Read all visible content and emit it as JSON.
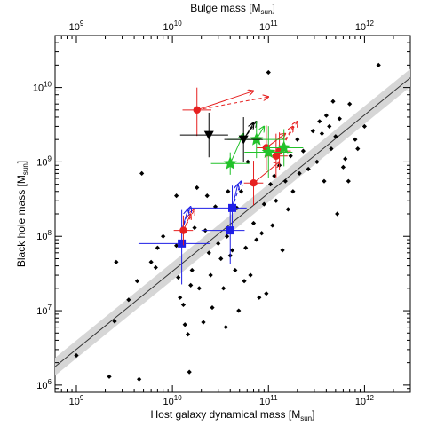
{
  "chart_data": {
    "type": "scatter",
    "title": "",
    "xlabel": "Host galaxy dynamical mass [M",
    "xlabel_sub": "sun",
    "xlabel_end": "]",
    "ylabel": "Black hole mass [M",
    "ylabel_sub": "sun",
    "ylabel_end": "]",
    "top_xlabel": "Bulge mass [M",
    "top_xlabel_sub": "sun",
    "top_xlabel_end": "]",
    "x_scale": "log",
    "y_scale": "log",
    "xlim": [
      600000000.0,
      3000000000000.0
    ],
    "ylim": [
      800000.0,
      50000000000.0
    ],
    "x_ticks": [
      {
        "base": "10",
        "exp": "9",
        "value": 1000000000.0
      },
      {
        "base": "10",
        "exp": "10",
        "value": 10000000000.0
      },
      {
        "base": "10",
        "exp": "11",
        "value": 100000000000.0
      },
      {
        "base": "10",
        "exp": "12",
        "value": 1000000000000.0
      }
    ],
    "y_ticks": [
      {
        "base": "10",
        "exp": "6",
        "value": 1000000.0
      },
      {
        "base": "10",
        "exp": "7",
        "value": 10000000.0
      },
      {
        "base": "10",
        "exp": "8",
        "value": 100000000.0
      },
      {
        "base": "10",
        "exp": "9",
        "value": 1000000000.0
      },
      {
        "base": "10",
        "exp": "10",
        "value": 10000000000.0
      }
    ],
    "top_x_ticks": [
      {
        "base": "10",
        "exp": "9",
        "value": 1000000000.0
      },
      {
        "base": "10",
        "exp": "10",
        "value": 10000000000.0
      },
      {
        "base": "10",
        "exp": "11",
        "value": 100000000000.0
      },
      {
        "base": "10",
        "exp": "12",
        "value": 1000000000000.0
      }
    ],
    "grid": false,
    "relation": {
      "x_range": [
        600000000.0,
        3000000000000.0
      ],
      "slope": 1.05,
      "intercept_logy_at_logx_11": 8.58,
      "band_dex": 0.12
    },
    "colors": {
      "local": "#000000",
      "blue": "#1f1fe6",
      "red": "#e62020",
      "green": "#22c22a",
      "black": "#000000",
      "band": "#d6d6d6"
    },
    "series": [
      {
        "marker": "diamond",
        "color": "#000000",
        "points": [
          [
            1000000000.0,
            2500000.0
          ],
          [
            2200000000.0,
            1300000.0
          ],
          [
            2500000000.0,
            7200000.0
          ],
          [
            2600000000.0,
            45000000.0
          ],
          [
            3500000000.0,
            14000000.0
          ],
          [
            4300000000.0,
            25000000.0
          ],
          [
            4500000000.0,
            1200000.0
          ],
          [
            4800000000.0,
            700000000.0
          ],
          [
            6000000000.0,
            45000000.0
          ],
          [
            6700000000.0,
            38000000.0
          ],
          [
            7000000000.0,
            70000000.0
          ],
          [
            8000000000.0,
            100000000.0
          ],
          [
            11000000000.0,
            350000000.0
          ],
          [
            11000000000.0,
            75000000.0
          ],
          [
            11500000000.0,
            28000000.0
          ],
          [
            12000000000.0,
            15000000.0
          ],
          [
            13000000000.0,
            12000000.0
          ],
          [
            13500000000.0,
            6500000.0
          ],
          [
            14500000000.0,
            4800000.0
          ],
          [
            15000000000.0,
            1500000.0
          ],
          [
            15500000000.0,
            22000000.0
          ],
          [
            16000000000.0,
            35000000.0
          ],
          [
            17000000000.0,
            130000000.0
          ],
          [
            18000000000.0,
            450000000.0
          ],
          [
            19000000000.0,
            20000000.0
          ],
          [
            21000000000.0,
            7000000.0
          ],
          [
            22000000000.0,
            120000000.0
          ],
          [
            23000000000.0,
            350000000.0
          ],
          [
            24000000000.0,
            60000000.0
          ],
          [
            25000000000.0,
            30000000.0
          ],
          [
            26000000000.0,
            11000000.0
          ],
          [
            28000000000.0,
            250000000.0
          ],
          [
            30000000000.0,
            80000000.0
          ],
          [
            32000000000.0,
            50000000.0
          ],
          [
            34000000000.0,
            20000000.0
          ],
          [
            36000000000.0,
            6000000.0
          ],
          [
            37000000000.0,
            100000000.0
          ],
          [
            38000000000.0,
            400000000.0
          ],
          [
            40000000000.0,
            55000000.0
          ],
          [
            42000000000.0,
            65000000.0
          ],
          [
            45000000000.0,
            35000000.0
          ],
          [
            47000000000.0,
            240000000.0
          ],
          [
            49000000000.0,
            10000000.0
          ],
          [
            52000000000.0,
            400000000.0
          ],
          [
            56000000000.0,
            25000000.0
          ],
          [
            58000000000.0,
            70000000.0
          ],
          [
            61000000000.0,
            1000000000.0
          ],
          [
            65000000000.0,
            30000000.0
          ],
          [
            70000000000.0,
            150000000.0
          ],
          [
            75000000000.0,
            90000000.0
          ],
          [
            80000000000.0,
            15000000.0
          ],
          [
            85000000000.0,
            110000000.0
          ],
          [
            90000000000.0,
            270000000.0
          ],
          [
            95000000000.0,
            17000000.0
          ],
          [
            100000000000.0,
            16000000000.0
          ],
          [
            105000000000.0,
            500000000.0
          ],
          [
            110000000000.0,
            140000000.0
          ],
          [
            115000000000.0,
            650000000.0
          ],
          [
            120000000000.0,
            300000000.0
          ],
          [
            130000000000.0,
            900000000.0
          ],
          [
            140000000000.0,
            65000000.0
          ],
          [
            150000000000.0,
            550000000.0
          ],
          [
            160000000000.0,
            230000000.0
          ],
          [
            170000000000.0,
            1200000000.0
          ],
          [
            180000000000.0,
            400000000.0
          ],
          [
            200000000000.0,
            2000000000.0
          ],
          [
            210000000000.0,
            700000000.0
          ],
          [
            230000000000.0,
            1400000000.0
          ],
          [
            260000000000.0,
            800000000.0
          ],
          [
            290000000000.0,
            2600000000.0
          ],
          [
            320000000000.0,
            1000000000.0
          ],
          [
            340000000000.0,
            3500000000.0
          ],
          [
            360000000000.0,
            2400000000.0
          ],
          [
            380000000000.0,
            550000000.0
          ],
          [
            400000000000.0,
            4200000000.0
          ],
          [
            430000000000.0,
            3000000000.0
          ],
          [
            450000000000.0,
            1500000000.0
          ],
          [
            470000000000.0,
            6500000000.0
          ],
          [
            500000000000.0,
            2200000000.0
          ],
          [
            520000000000.0,
            200000000.0
          ],
          [
            550000000000.0,
            3800000000.0
          ],
          [
            600000000000.0,
            850000000.0
          ],
          [
            630000000000.0,
            1100000000.0
          ],
          [
            680000000000.0,
            550000000.0
          ],
          [
            700000000000.0,
            6000000000.0
          ],
          [
            800000000000.0,
            2000000000.0
          ],
          [
            850000000000.0,
            1500000000.0
          ],
          [
            1000000000000.0,
            3000000000.0
          ],
          [
            1400000000000.0,
            20000000000.0
          ]
        ]
      },
      {
        "marker": "square",
        "color": "#1f1fe6",
        "points": [
          [
            12500000000.0,
            80000000.0
          ],
          [
            40000000000.0,
            120000000.0
          ],
          [
            42000000000.0,
            240000000.0
          ]
        ],
        "xerr": [
          [
            0.45,
            0.3
          ],
          [
            0.3,
            0.15
          ],
          [
            0.45,
            0.15
          ]
        ],
        "yerr": [
          [
            0.55,
            0.45
          ],
          [
            0.45,
            0.35
          ],
          [
            0.35,
            0.3
          ]
        ]
      },
      {
        "marker": "circle",
        "color": "#e62020",
        "points": [
          [
            13000000000.0,
            120000000.0
          ],
          [
            18000000000.0,
            5000000000.0
          ],
          [
            70000000000.0,
            520000000.0
          ],
          [
            95000000000.0,
            1550000000.0
          ],
          [
            120000000000.0,
            1200000000.0
          ],
          [
            130000000000.0,
            1400000000.0
          ]
        ],
        "xerr": [
          [
            0.1,
            0.1
          ],
          [
            0.15,
            0.15
          ],
          [
            0.1,
            0.1
          ],
          [
            0.1,
            0.1
          ],
          [
            0.12,
            0.12
          ],
          [
            0.12,
            0.12
          ]
        ],
        "yerr": [
          [
            0.2,
            0.2
          ],
          [
            0.35,
            0.3
          ],
          [
            0.3,
            0.3
          ],
          [
            0.3,
            0.3
          ],
          [
            0.3,
            0.3
          ],
          [
            0.25,
            0.25
          ]
        ]
      },
      {
        "marker": "star",
        "color": "#22c22a",
        "points": [
          [
            40000000000.0,
            950000000.0
          ],
          [
            75000000000.0,
            2000000000.0
          ],
          [
            100000000000.0,
            1350000000.0
          ],
          [
            145000000000.0,
            1550000000.0
          ]
        ],
        "xerr": [
          [
            0.2,
            0.2
          ],
          [
            0.3,
            0.3
          ],
          [
            0.25,
            0.25
          ],
          [
            0.2,
            0.2
          ]
        ],
        "yerr": [
          [
            0.15,
            0.15
          ],
          [
            0.25,
            0.25
          ],
          [
            0.35,
            0.35
          ],
          [
            0.25,
            0.25
          ]
        ]
      },
      {
        "marker": "triangle-down",
        "color": "#000000",
        "points": [
          [
            24000000000.0,
            2300000000.0
          ],
          [
            55000000000.0,
            2000000000.0
          ]
        ],
        "xerr": [
          [
            0.3,
            0.2
          ],
          [
            0.2,
            0.2
          ]
        ],
        "yerr": [
          [
            0.3,
            0.3
          ],
          [
            0.3,
            0.3
          ]
        ]
      }
    ],
    "arrows": [
      {
        "from": [
          18000000000.0,
          5000000000.0
        ],
        "to": [
          70000000000.0,
          9000000000.0
        ],
        "color": "#e62020",
        "style": "solid"
      },
      {
        "from": [
          18000000000.0,
          5000000000.0
        ],
        "to": [
          100000000000.0,
          7500000000.0
        ],
        "color": "#e62020",
        "style": "dashed"
      },
      {
        "from": [
          70000000000.0,
          520000000.0
        ],
        "to": [
          130000000000.0,
          1000000000.0
        ],
        "color": "#e62020",
        "style": "solid"
      },
      {
        "from": [
          95000000000.0,
          1550000000.0
        ],
        "to": [
          150000000000.0,
          2400000000.0
        ],
        "color": "#e62020",
        "style": "solid"
      },
      {
        "from": [
          120000000000.0,
          1200000000.0
        ],
        "to": [
          180000000000.0,
          3000000000.0
        ],
        "color": "#e62020",
        "style": "dashed"
      },
      {
        "from": [
          130000000000.0,
          1400000000.0
        ],
        "to": [
          200000000000.0,
          3500000000.0
        ],
        "color": "#e62020",
        "style": "dashed"
      },
      {
        "from": [
          13000000000.0,
          120000000.0
        ],
        "to": [
          15500000000.0,
          200000000.0
        ],
        "color": "#e62020",
        "style": "solid"
      },
      {
        "from": [
          13000000000.0,
          120000000.0
        ],
        "to": [
          17000000000.0,
          230000000.0
        ],
        "color": "#e62020",
        "style": "dashed"
      },
      {
        "from": [
          42000000000.0,
          240000000.0
        ],
        "to": [
          48000000000.0,
          500000000.0
        ],
        "color": "#1f1fe6",
        "style": "solid"
      },
      {
        "from": [
          42000000000.0,
          240000000.0
        ],
        "to": [
          52000000000.0,
          550000000.0
        ],
        "color": "#1f1fe6",
        "style": "dashed"
      },
      {
        "from": [
          12500000000.0,
          120000000.0
        ],
        "to": [
          14500000000.0,
          230000000.0
        ],
        "color": "#1f1fe6",
        "style": "solid"
      },
      {
        "from": [
          12500000000.0,
          120000000.0
        ],
        "to": [
          15500000000.0,
          250000000.0
        ],
        "color": "#1f1fe6",
        "style": "dashed"
      },
      {
        "from": [
          55000000000.0,
          2000000000.0
        ],
        "to": [
          70000000000.0,
          3300000000.0
        ],
        "color": "#000000",
        "style": "solid"
      },
      {
        "from": [
          55000000000.0,
          2000000000.0
        ],
        "to": [
          75000000000.0,
          3500000000.0
        ],
        "color": "#000000",
        "style": "dashed"
      },
      {
        "from": [
          40000000000.0,
          950000000.0
        ],
        "to": [
          55000000000.0,
          2400000000.0
        ],
        "color": "#22c22a",
        "style": "solid"
      },
      {
        "from": [
          75000000000.0,
          2000000000.0
        ],
        "to": [
          90000000000.0,
          3000000000.0
        ],
        "color": "#22c22a",
        "style": "solid"
      }
    ]
  }
}
